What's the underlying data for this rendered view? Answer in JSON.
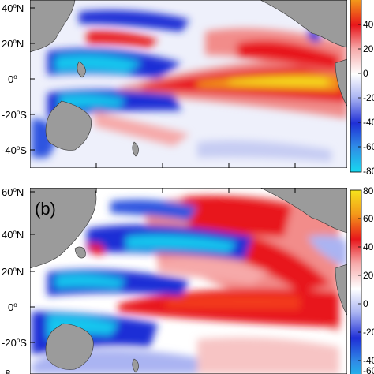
{
  "figure": {
    "panels": [
      {
        "id": "a",
        "label": "",
        "lat_ticks": [
          {
            "label": "40",
            "dir": "N"
          },
          {
            "label": "20",
            "dir": "N"
          },
          {
            "label": "0",
            "dir": ""
          },
          {
            "label": "20",
            "dir": "S"
          },
          {
            "label": "40",
            "dir": "S"
          }
        ],
        "colorbar_ticks": [
          "40",
          "20",
          "0",
          "-20",
          "-40",
          "-60",
          "-80"
        ]
      },
      {
        "id": "b",
        "label": "(b)",
        "lat_ticks": [
          {
            "label": "60",
            "dir": "N"
          },
          {
            "label": "40",
            "dir": "N"
          },
          {
            "label": "20",
            "dir": "N"
          },
          {
            "label": "0",
            "dir": ""
          },
          {
            "label": "20",
            "dir": "S"
          },
          {
            "label": "8",
            "dir": ""
          }
        ],
        "colorbar_ticks": [
          "80",
          "60",
          "40",
          "20",
          "0",
          "-20",
          "-40",
          "-60"
        ]
      }
    ],
    "degree_symbol": "o",
    "colors": {
      "land": "#9b9b9b",
      "strong_positive": "#e8161b",
      "warm_yellow": "#f5dc1e",
      "strong_negative": "#1f2fd6",
      "cyan": "#18c6ee",
      "neutral": "#ffffff"
    }
  }
}
